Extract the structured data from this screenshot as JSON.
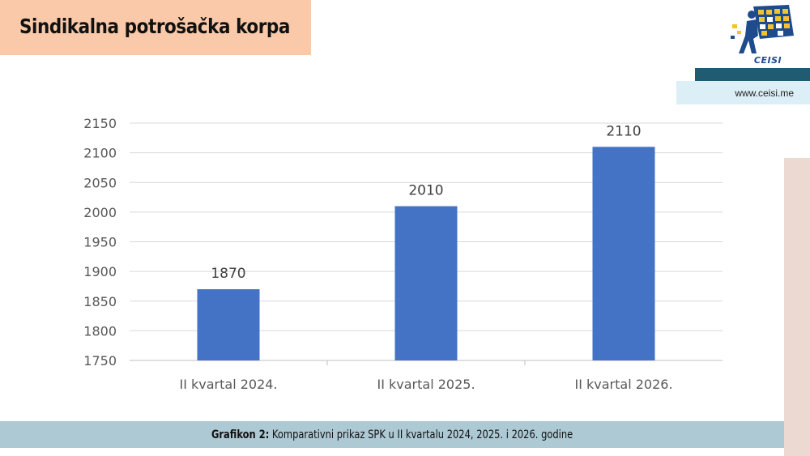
{
  "header": {
    "title": "Sindikalna potrošačka korpa"
  },
  "logo": {
    "text": "CEISI",
    "icon": "ceisi-logo-icon"
  },
  "site": {
    "url": "www.ceisi.me"
  },
  "caption": {
    "label": "Grafikon 2:",
    "text": "Komparativni prikaz SPK u II kvartalu 2024, 2025. i 2026. godine"
  },
  "colors": {
    "bar": "#4472c4",
    "title_bg": "#f9c9a9",
    "caption_bg": "#adc9d4",
    "teal": "#1f5c72",
    "gridline": "#d9d9d9"
  },
  "chart_data": {
    "type": "bar",
    "categories": [
      "II kvartal 2024.",
      "II kvartal 2025.",
      "II kvartal 2026."
    ],
    "values": [
      1870,
      2010,
      2110
    ],
    "data_labels": [
      "1870",
      "2010",
      "2110"
    ],
    "yticks": [
      "1750",
      "1800",
      "1850",
      "1900",
      "1950",
      "2000",
      "2050",
      "2100",
      "2150"
    ],
    "ylim": [
      1750,
      2150
    ],
    "grid": true,
    "legend": "none"
  }
}
